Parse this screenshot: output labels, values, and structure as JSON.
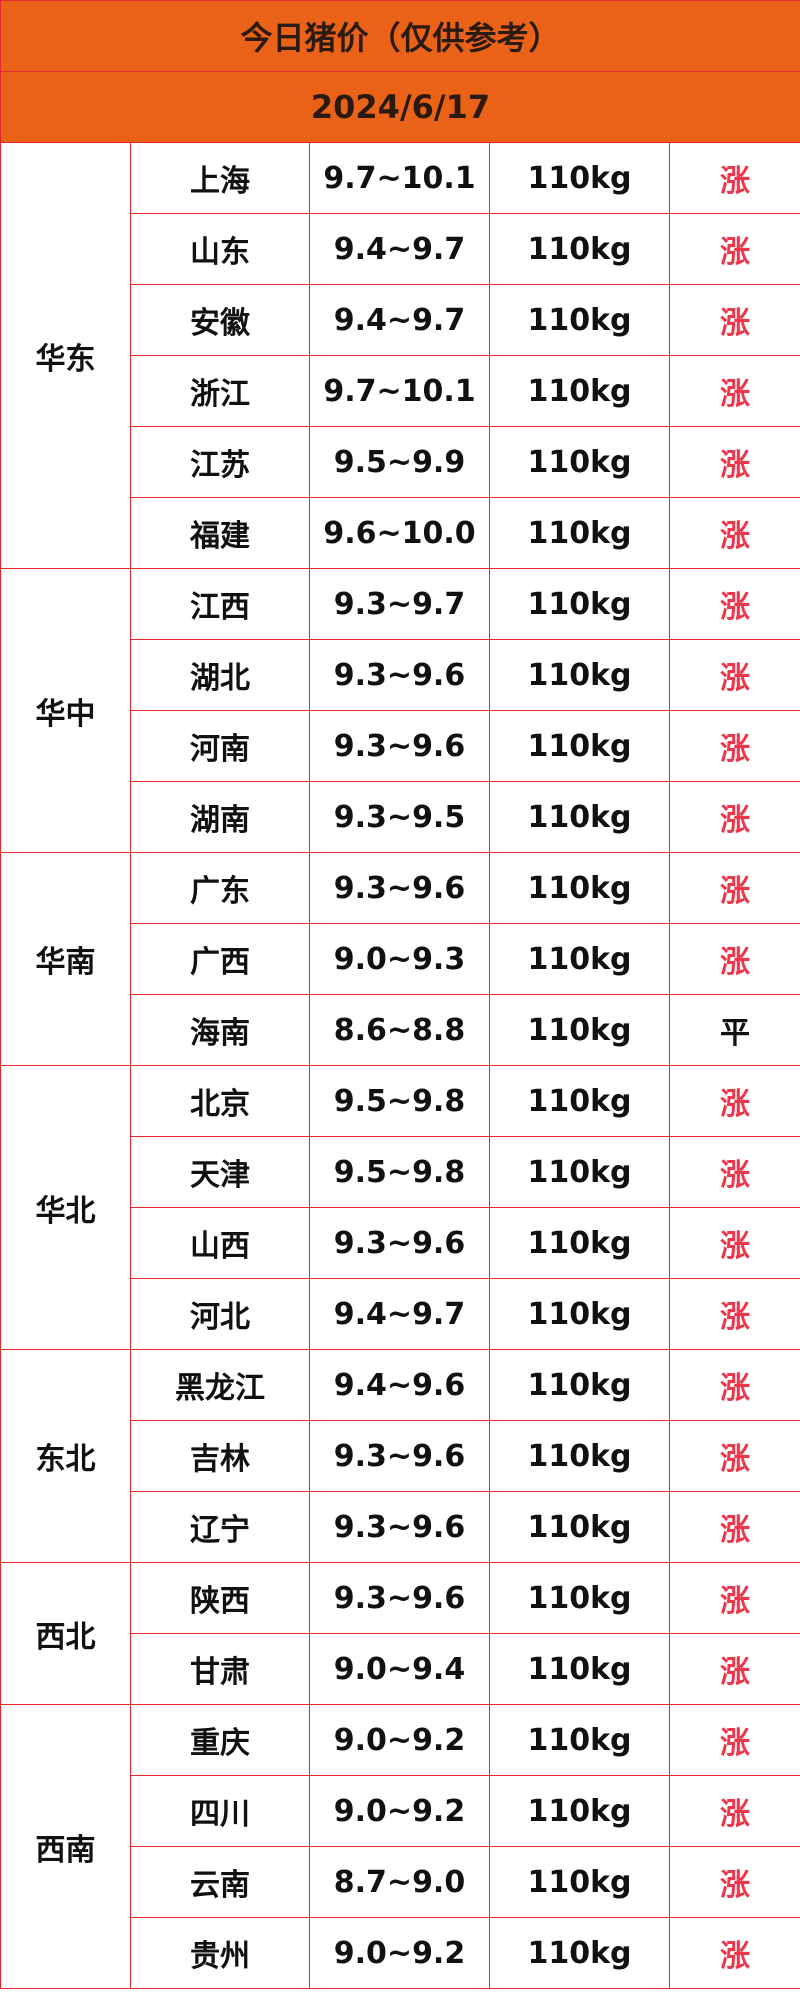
{
  "header": {
    "title": "今日猪价（仅供参考）",
    "date": "2024/6/17"
  },
  "regions": [
    {
      "name": "华东",
      "rows": [
        {
          "province": "上海",
          "price": "9.7~10.1",
          "weight": "110kg",
          "trend": "涨",
          "trend_color": "#f0364a"
        },
        {
          "province": "山东",
          "price": "9.4~9.7",
          "weight": "110kg",
          "trend": "涨",
          "trend_color": "#f0364a"
        },
        {
          "province": "安徽",
          "price": "9.4~9.7",
          "weight": "110kg",
          "trend": "涨",
          "trend_color": "#f0364a"
        },
        {
          "province": "浙江",
          "price": "9.7~10.1",
          "weight": "110kg",
          "trend": "涨",
          "trend_color": "#f0364a"
        },
        {
          "province": "江苏",
          "price": "9.5~9.9",
          "weight": "110kg",
          "trend": "涨",
          "trend_color": "#f0364a"
        },
        {
          "province": "福建",
          "price": "9.6~10.0",
          "weight": "110kg",
          "trend": "涨",
          "trend_color": "#f0364a"
        }
      ]
    },
    {
      "name": "华中",
      "rows": [
        {
          "province": "江西",
          "price": "9.3~9.7",
          "weight": "110kg",
          "trend": "涨",
          "trend_color": "#f0364a"
        },
        {
          "province": "湖北",
          "price": "9.3~9.6",
          "weight": "110kg",
          "trend": "涨",
          "trend_color": "#f0364a"
        },
        {
          "province": "河南",
          "price": "9.3~9.6",
          "weight": "110kg",
          "trend": "涨",
          "trend_color": "#f0364a"
        },
        {
          "province": "湖南",
          "price": "9.3~9.5",
          "weight": "110kg",
          "trend": "涨",
          "trend_color": "#f0364a"
        }
      ]
    },
    {
      "name": "华南",
      "rows": [
        {
          "province": "广东",
          "price": "9.3~9.6",
          "weight": "110kg",
          "trend": "涨",
          "trend_color": "#f0364a"
        },
        {
          "province": "广西",
          "price": "9.0~9.3",
          "weight": "110kg",
          "trend": "涨",
          "trend_color": "#f0364a"
        },
        {
          "province": "海南",
          "price": "8.6~8.8",
          "weight": "110kg",
          "trend": "平",
          "trend_color": "#111111"
        }
      ]
    },
    {
      "name": "华北",
      "rows": [
        {
          "province": "北京",
          "price": "9.5~9.8",
          "weight": "110kg",
          "trend": "涨",
          "trend_color": "#f0364a"
        },
        {
          "province": "天津",
          "price": "9.5~9.8",
          "weight": "110kg",
          "trend": "涨",
          "trend_color": "#f0364a"
        },
        {
          "province": "山西",
          "price": "9.3~9.6",
          "weight": "110kg",
          "trend": "涨",
          "trend_color": "#f0364a"
        },
        {
          "province": "河北",
          "price": "9.4~9.7",
          "weight": "110kg",
          "trend": "涨",
          "trend_color": "#f0364a"
        }
      ]
    },
    {
      "name": "东北",
      "rows": [
        {
          "province": "黑龙江",
          "price": "9.4~9.6",
          "weight": "110kg",
          "trend": "涨",
          "trend_color": "#f0364a"
        },
        {
          "province": "吉林",
          "price": "9.3~9.6",
          "weight": "110kg",
          "trend": "涨",
          "trend_color": "#f0364a"
        },
        {
          "province": "辽宁",
          "price": "9.3~9.6",
          "weight": "110kg",
          "trend": "涨",
          "trend_color": "#f0364a"
        }
      ]
    },
    {
      "name": "西北",
      "rows": [
        {
          "province": "陕西",
          "price": "9.3~9.6",
          "weight": "110kg",
          "trend": "涨",
          "trend_color": "#f0364a"
        },
        {
          "province": "甘肃",
          "price": "9.0~9.4",
          "weight": "110kg",
          "trend": "涨",
          "trend_color": "#f0364a"
        }
      ]
    },
    {
      "name": "西南",
      "rows": [
        {
          "province": "重庆",
          "price": "9.0~9.2",
          "weight": "110kg",
          "trend": "涨",
          "trend_color": "#f0364a"
        },
        {
          "province": "四川",
          "price": "9.0~9.2",
          "weight": "110kg",
          "trend": "涨",
          "trend_color": "#f0364a"
        },
        {
          "province": "云南",
          "price": "8.7~9.0",
          "weight": "110kg",
          "trend": "涨",
          "trend_color": "#f0364a"
        },
        {
          "province": "贵州",
          "price": "9.0~9.2",
          "weight": "110kg",
          "trend": "涨",
          "trend_color": "#f0364a"
        }
      ]
    }
  ]
}
